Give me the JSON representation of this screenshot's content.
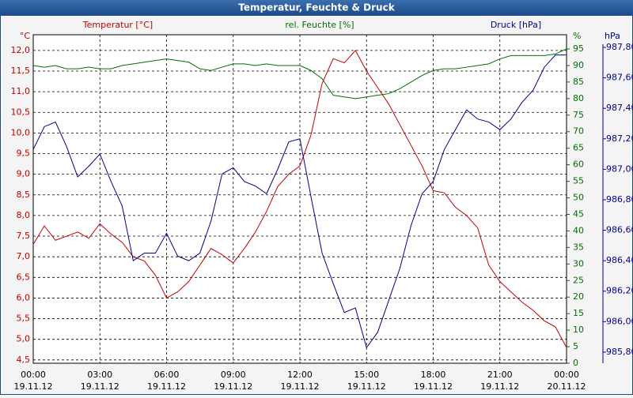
{
  "chart_data": {
    "type": "line",
    "title": "Temperatur, Feuchte & Druck",
    "grid": true,
    "x": [
      0,
      0.5,
      1,
      1.5,
      2,
      2.5,
      3,
      3.5,
      4,
      4.5,
      5,
      5.5,
      6,
      6.5,
      7,
      7.5,
      8,
      8.5,
      9,
      9.5,
      10,
      10.5,
      11,
      11.5,
      12,
      12.5,
      13,
      13.5,
      14,
      14.5,
      15,
      15.5,
      16,
      16.5,
      17,
      17.5,
      18,
      18.5,
      19,
      19.5,
      20,
      20.5,
      21,
      21.5,
      22,
      22.5,
      23,
      23.5,
      24
    ],
    "xlim": [
      0,
      24
    ],
    "xticks": [
      {
        "value": 0,
        "label": "00:00"
      },
      {
        "value": 3,
        "label": "03:00"
      },
      {
        "value": 6,
        "label": "06:00"
      },
      {
        "value": 9,
        "label": "09:00"
      },
      {
        "value": 12,
        "label": "12:00"
      },
      {
        "value": 15,
        "label": "15:00"
      },
      {
        "value": 18,
        "label": "18:00"
      },
      {
        "value": 21,
        "label": "21:00"
      },
      {
        "value": 24,
        "label": "00:00"
      }
    ],
    "xtick_dates": [
      "19.11.12",
      "19.11.12",
      "19.11.12",
      "19.11.12",
      "19.11.12",
      "19.11.12",
      "19.11.12",
      "19.11.12",
      "20.11.12"
    ],
    "ylabel": "Temperatur [°C]",
    "yunit": "°C",
    "ylim": [
      4.42,
      12.38
    ],
    "yticks": [
      {
        "value": 4.5,
        "label": "4,5"
      },
      {
        "value": 5.0,
        "label": "5,0"
      },
      {
        "value": 5.5,
        "label": "5,5"
      },
      {
        "value": 6.0,
        "label": "6,0"
      },
      {
        "value": 6.5,
        "label": "6,5"
      },
      {
        "value": 7.0,
        "label": "7,0"
      },
      {
        "value": 7.5,
        "label": "7,5"
      },
      {
        "value": 8.0,
        "label": "8,0"
      },
      {
        "value": 8.5,
        "label": "8,5"
      },
      {
        "value": 9.0,
        "label": "9,0"
      },
      {
        "value": 9.5,
        "label": "9,5"
      },
      {
        "value": 10.0,
        "label": "10,0"
      },
      {
        "value": 10.5,
        "label": "10,5"
      },
      {
        "value": 11.0,
        "label": "11,0"
      },
      {
        "value": 11.5,
        "label": "11,5"
      },
      {
        "value": 12.0,
        "label": "12,0"
      }
    ],
    "y2label": "rel. Feuchte [%]",
    "y2unit": "%",
    "y2lim": [
      0,
      99.3
    ],
    "y2ticks": [
      0,
      5,
      10,
      15,
      20,
      25,
      30,
      35,
      40,
      45,
      50,
      55,
      60,
      65,
      70,
      75,
      80,
      85,
      90,
      95
    ],
    "y3label": "Druck [hPa]",
    "y3unit": "hPa",
    "y3lim": [
      985.727,
      987.883
    ],
    "y3ticks": [
      {
        "value": 985.8,
        "label": "985,80"
      },
      {
        "value": 986.0,
        "label": "986,00"
      },
      {
        "value": 986.2,
        "label": "986,20"
      },
      {
        "value": 986.4,
        "label": "986,40"
      },
      {
        "value": 986.6,
        "label": "986,60"
      },
      {
        "value": 986.8,
        "label": "986,80"
      },
      {
        "value": 987.0,
        "label": "987,00"
      },
      {
        "value": 987.2,
        "label": "987,20"
      },
      {
        "value": 987.4,
        "label": "987,40"
      },
      {
        "value": 987.6,
        "label": "987,60"
      },
      {
        "value": 987.8,
        "label": "987,80"
      }
    ],
    "series": [
      {
        "name": "Temperatur",
        "color": "#c00000",
        "axis": "y",
        "values": [
          7.3,
          7.75,
          7.4,
          7.5,
          7.6,
          7.45,
          7.8,
          7.55,
          7.35,
          7.0,
          6.9,
          6.55,
          6.0,
          6.15,
          6.4,
          6.8,
          7.2,
          7.05,
          6.85,
          7.2,
          7.6,
          8.1,
          8.7,
          9.0,
          9.2,
          9.95,
          11.2,
          11.8,
          11.7,
          12.0,
          11.5,
          11.1,
          10.7,
          10.2,
          9.7,
          9.2,
          8.6,
          8.55,
          8.2,
          8.0,
          7.7,
          6.8,
          6.4,
          6.15,
          5.9,
          5.7,
          5.45,
          5.3,
          4.8
        ]
      },
      {
        "name": "rel. Feuchte",
        "color": "#007000",
        "axis": "y2",
        "values": [
          90,
          89.5,
          90,
          89,
          89,
          89.5,
          89,
          89,
          90,
          90.5,
          91,
          91.5,
          92,
          91.5,
          91,
          89,
          88.5,
          89.5,
          90.5,
          90.5,
          90,
          90.5,
          90,
          90,
          90,
          88.5,
          86,
          81,
          80.5,
          80,
          80.5,
          81,
          81.5,
          83,
          85,
          87,
          88.5,
          89,
          89,
          89.5,
          90,
          90.5,
          92,
          93,
          93,
          93,
          93,
          93.5,
          95
        ]
      },
      {
        "name": "Druck",
        "color": "#00008b",
        "axis": "y3",
        "values": [
          987.13,
          987.28,
          987.31,
          987.15,
          986.95,
          987.02,
          987.1,
          986.92,
          986.76,
          986.4,
          986.45,
          986.45,
          986.58,
          986.43,
          986.4,
          986.45,
          986.66,
          986.97,
          987.01,
          986.92,
          986.89,
          986.84,
          987.0,
          987.18,
          987.2,
          986.82,
          986.45,
          986.25,
          986.06,
          986.09,
          985.83,
          985.93,
          986.14,
          986.35,
          986.63,
          986.84,
          986.92,
          987.13,
          987.26,
          987.39,
          987.33,
          987.31,
          987.26,
          987.33,
          987.44,
          987.52,
          987.67,
          987.75,
          987.75
        ]
      }
    ]
  }
}
